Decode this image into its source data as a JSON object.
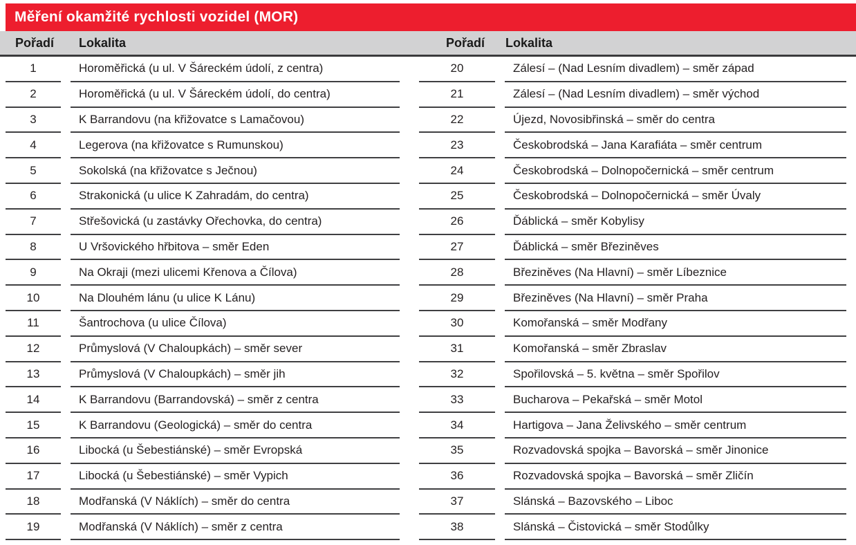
{
  "title": "Měření okamžité rychlosti vozidel (MOR)",
  "colors": {
    "title_bar_red": "#ed1e2e",
    "header_gray": "#d2d2d3",
    "rule_dark": "#3a3a3c",
    "text": "#231f20",
    "title_text": "#ffffff"
  },
  "table": {
    "header_order": "Pořadí",
    "header_locality": "Lokalita",
    "left_rows": [
      {
        "order": "1",
        "locality": "Horoměřická (u ul. V Šáreckém údolí, z centra)"
      },
      {
        "order": "2",
        "locality": "Horoměřická (u ul. V Šáreckém údolí, do centra)"
      },
      {
        "order": "3",
        "locality": "K Barrandovu (na křižovatce s Lamačovou)"
      },
      {
        "order": "4",
        "locality": "Legerova (na křižovatce s Rumunskou)"
      },
      {
        "order": "5",
        "locality": "Sokolská (na křižovatce s Ječnou)"
      },
      {
        "order": "6",
        "locality": "Strakonická (u ulice K Zahradám, do centra)"
      },
      {
        "order": "7",
        "locality": "Střešovická (u zastávky Ořechovka, do centra)"
      },
      {
        "order": "8",
        "locality": "U Vršovického hřbitova – směr Eden"
      },
      {
        "order": "9",
        "locality": "Na Okraji (mezi ulicemi Křenova a Čílova)"
      },
      {
        "order": "10",
        "locality": "Na Dlouhém lánu (u ulice K Lánu)"
      },
      {
        "order": "11",
        "locality": "Šantrochova (u ulice Čílova)"
      },
      {
        "order": "12",
        "locality": "Průmyslová (V Chaloupkách) – směr sever"
      },
      {
        "order": "13",
        "locality": "Průmyslová (V Chaloupkách) – směr jih"
      },
      {
        "order": "14",
        "locality": "K Barrandovu (Barrandovská) – směr z centra"
      },
      {
        "order": "15",
        "locality": "K Barrandovu (Geologická) – směr do centra"
      },
      {
        "order": "16",
        "locality": "Libocká (u Šebestiánské) – směr Evropská"
      },
      {
        "order": "17",
        "locality": "Libocká (u Šebestiánské) – směr Vypich"
      },
      {
        "order": "18",
        "locality": "Modřanská (V Náklích) – směr do centra"
      },
      {
        "order": "19",
        "locality": "Modřanská (V Náklích) – směr z centra"
      }
    ],
    "right_rows": [
      {
        "order": "20",
        "locality": "Zálesí – (Nad Lesním divadlem) – směr západ"
      },
      {
        "order": "21",
        "locality": "Zálesí – (Nad Lesním divadlem) – směr východ"
      },
      {
        "order": "22",
        "locality": "Újezd, Novosibřinská – směr do centra"
      },
      {
        "order": "23",
        "locality": "Českobrodská – Jana Karafiáta – směr centrum"
      },
      {
        "order": "24",
        "locality": "Českobrodská – Dolnopočernická – směr centrum"
      },
      {
        "order": "25",
        "locality": "Českobrodská – Dolnopočernická – směr Úvaly"
      },
      {
        "order": "26",
        "locality": "Ďáblická – směr Kobylisy"
      },
      {
        "order": "27",
        "locality": "Ďáblická – směr Březiněves"
      },
      {
        "order": "28",
        "locality": "Březiněves (Na Hlavní) – směr Líbeznice"
      },
      {
        "order": "29",
        "locality": "Březiněves (Na Hlavní) – směr Praha"
      },
      {
        "order": "30",
        "locality": "Komořanská – směr Modřany"
      },
      {
        "order": "31",
        "locality": "Komořanská – směr Zbraslav"
      },
      {
        "order": "32",
        "locality": "Spořilovská – 5. května – směr Spořilov"
      },
      {
        "order": "33",
        "locality": "Bucharova – Pekařská – směr Motol"
      },
      {
        "order": "34",
        "locality": "Hartigova – Jana Želivského – směr centrum"
      },
      {
        "order": "35",
        "locality": "Rozvadovská spojka – Bavorská – směr Jinonice"
      },
      {
        "order": "36",
        "locality": "Rozvadovská spojka – Bavorská – směr Zličín"
      },
      {
        "order": "37",
        "locality": "Slánská – Bazovského – Liboc"
      },
      {
        "order": "38",
        "locality": "Slánská – Čistovická – směr Stodůlky"
      }
    ]
  }
}
